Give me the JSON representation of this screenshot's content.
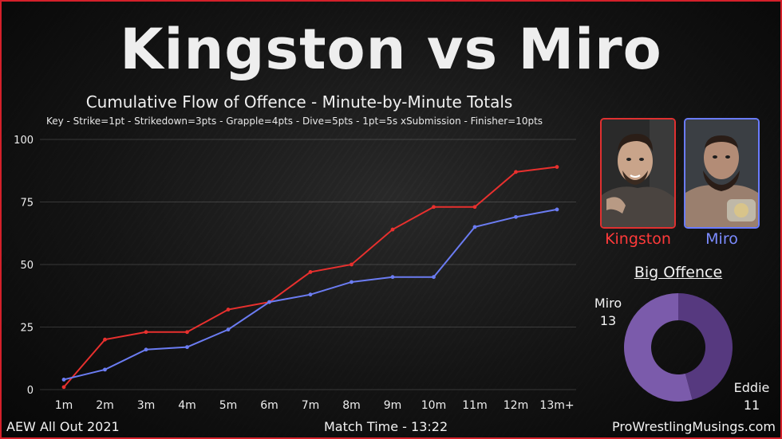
{
  "title": "Kingston vs Miro",
  "chart_title": "Cumulative Flow of Offence - Minute-by-Minute Totals",
  "chart_key": "Key - Strike=1pt - Strikedown=3pts - Grapple=4pts - Dive=5pts - 1pt=5s xSubmission - Finisher=10pts",
  "chart_data": {
    "type": "line",
    "title": "Cumulative Flow of Offence - Minute-by-Minute Totals",
    "categories": [
      "1m",
      "2m",
      "3m",
      "4m",
      "5m",
      "6m",
      "7m",
      "8m",
      "9m",
      "10m",
      "11m",
      "12m",
      "13m+"
    ],
    "ylim": [
      0,
      100
    ],
    "yticks": [
      0,
      25,
      50,
      75,
      100
    ],
    "grid": true,
    "series": [
      {
        "name": "Kingston",
        "color": "#e8302e",
        "values": [
          1,
          20,
          23,
          23,
          32,
          35,
          47,
          50,
          64,
          73,
          73,
          87,
          89
        ]
      },
      {
        "name": "Miro",
        "color": "#6b7cf2",
        "values": [
          4,
          8,
          16,
          17,
          24,
          35,
          38,
          43,
          45,
          45,
          65,
          69,
          72
        ]
      }
    ],
    "donut": {
      "title": "Big Offence",
      "slices": [
        {
          "label": "Miro",
          "value": 13,
          "color": "#7b5bab"
        },
        {
          "label": "Eddie",
          "value": 11,
          "color": "#56397f"
        }
      ]
    }
  },
  "wrestlers": {
    "kingston": {
      "name": "Kingston",
      "color": "#ff3a3a"
    },
    "miro": {
      "name": "Miro",
      "color": "#7b8bff"
    }
  },
  "big_offence": {
    "title": "Big Offence",
    "miro_name": "Miro",
    "miro_value": "13",
    "eddie_name": "Eddie",
    "eddie_value": "11"
  },
  "footer": {
    "event": "AEW All Out 2021",
    "match_time": "Match Time - 13:22",
    "site": "ProWrestlingMusings.com"
  }
}
